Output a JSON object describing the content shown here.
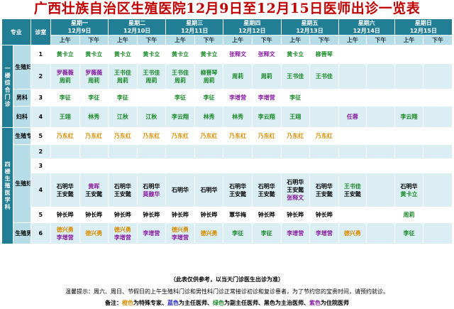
{
  "title": "广西壮族自治区生殖医院12月9日至12月15日医师出诊一览表",
  "header": {
    "specialty": "专业",
    "room": "诊室",
    "am": "上午",
    "pm": "下午",
    "days": [
      {
        "weekday": "星期一",
        "date": "12月9日"
      },
      {
        "weekday": "星期二",
        "date": "12月10日"
      },
      {
        "weekday": "星期三",
        "date": "12月11日"
      },
      {
        "weekday": "星期四",
        "date": "12月12日"
      },
      {
        "weekday": "星期五",
        "date": "12月13日"
      },
      {
        "weekday": "星期六",
        "date": "12月14日"
      },
      {
        "weekday": "星期日",
        "date": "12月15日"
      }
    ]
  },
  "groups": [
    {
      "label": "一楼综合门诊"
    },
    {
      "label": "四楼生殖医学科"
    }
  ],
  "specialties": [
    "生殖妇科",
    "男科",
    "妇科",
    "生殖专家",
    "生殖妇科",
    "生殖男科"
  ],
  "rows": [
    {
      "room": "1",
      "cells": [
        [
          "黄卡立"
        ],
        [
          "黄卡立"
        ],
        [
          "黄卡立"
        ],
        [
          "黄卡立"
        ],
        [
          "黄卡立"
        ],
        [
          "黄卡立"
        ],
        [
          "张释文"
        ],
        [
          "张释文"
        ],
        [
          "黄卡立"
        ],
        [
          "柳晋琴"
        ],
        [],
        [],
        [],
        []
      ]
    },
    {
      "room": "2",
      "cells": [
        [
          "罗薇薇",
          "周莉"
        ],
        [
          "罗薇薇",
          "周莉"
        ],
        [
          "王书佳",
          "周莉"
        ],
        [
          "王书佳",
          "周莉"
        ],
        [
          "王书佳",
          "周莉"
        ],
        [
          "柳晋琴",
          "周莉"
        ],
        [
          "周莉"
        ],
        [
          "周莉"
        ],
        [
          "王书佳"
        ],
        [
          "王书佳"
        ],
        [],
        [],
        [],
        []
      ]
    },
    {
      "room": "3",
      "cells": [
        [
          "李征"
        ],
        [
          "李征"
        ],
        [
          "李征"
        ],
        [],
        [
          "李征"
        ],
        [
          "李征"
        ],
        [
          "李增营"
        ],
        [
          "李增营"
        ],
        [
          "李征"
        ],
        [],
        [],
        [],
        [],
        []
      ]
    },
    {
      "room": "4",
      "cells": [
        [
          "王翊"
        ],
        [
          "林秀"
        ],
        [
          "江秋"
        ],
        [
          "江秋"
        ],
        [
          "李云翔"
        ],
        [
          "林秀"
        ],
        [
          "林秀"
        ],
        [
          "李云翔"
        ],
        [
          "王翊"
        ],
        [],
        [
          "任蓉"
        ],
        [],
        [
          "李云翔"
        ],
        []
      ]
    },
    {
      "room": "5",
      "cells": [
        [
          "乃东红"
        ],
        [
          "乃东红"
        ],
        [
          "乃东红"
        ],
        [
          "乃东红"
        ],
        [
          "乃东红"
        ],
        [
          "乃东红"
        ],
        [
          "乃东红"
        ],
        [
          "乃东红"
        ],
        [
          "乃东红"
        ],
        [
          "乃东红"
        ],
        [],
        [],
        [],
        []
      ]
    },
    {
      "room": "2",
      "cells": [
        [],
        [],
        [],
        [],
        [],
        [],
        [],
        [],
        [],
        [],
        [],
        [],
        [],
        []
      ]
    },
    {
      "room": "3",
      "cells": [
        [],
        [],
        [],
        [],
        [],
        [],
        [],
        [],
        [],
        [],
        [],
        [],
        [],
        []
      ]
    },
    {
      "room": "4",
      "cells": [
        [
          "石明华",
          "王安懿"
        ],
        [
          "黄晖",
          "王安懿"
        ],
        [
          "石明华",
          "王安懿"
        ],
        [
          "石明华",
          "莫馥华"
        ],
        [
          "石明华"
        ],
        [
          "石明华"
        ],
        [
          "石明华",
          "王安懿"
        ],
        [
          "石明华",
          "王安懿"
        ],
        [
          "石明华",
          "王安懿",
          "张释文"
        ],
        [
          "石明华",
          "王安懿"
        ],
        [
          "王书佳",
          "王安懿"
        ],
        [],
        [
          "石明华",
          "黄卡立"
        ],
        []
      ]
    },
    {
      "room": "5",
      "cells": [
        [
          "钟长晔"
        ],
        [
          "钟长晔"
        ],
        [
          "钟长晔"
        ],
        [
          "钟长晔"
        ],
        [
          "钟长晔"
        ],
        [
          "钟长晔"
        ],
        [
          "覃华梅"
        ],
        [
          "钟长晔"
        ],
        [
          "钟长晔"
        ],
        [
          "钟长晔"
        ],
        [],
        [],
        [
          "周莉"
        ],
        []
      ]
    },
    {
      "room": "6",
      "cells": [
        [
          "德兴勇",
          "李增营"
        ],
        [
          "德兴勇"
        ],
        [
          "德兴勇",
          "李增营"
        ],
        [
          "李增营"
        ],
        [
          "德兴勇",
          "李增营"
        ],
        [
          "德兴勇"
        ],
        [
          "李征"
        ],
        [
          "李征"
        ],
        [
          "李增营"
        ],
        [
          "李增营"
        ],
        [
          "德兴勇"
        ],
        [],
        [
          "李征"
        ],
        []
      ]
    }
  ],
  "color_map": {
    "黄卡立": "green",
    "张释文": "purple",
    "柳晋琴": "green",
    "罗薇薇": "purple",
    "周莉": "green",
    "王书佳": "green",
    "李征": "green",
    "李增营": "purple",
    "王翊": "green",
    "林秀": "green",
    "江秋": "green",
    "李云翔": "green",
    "任蓉": "purple",
    "乃东红": "orange",
    "石明华": "black",
    "王安懿": "black",
    "黄晖": "purple",
    "莫馥华": "purple",
    "钟长晔": "black",
    "覃华梅": "black",
    "德兴勇": "orange"
  },
  "colors": {
    "header_bg": "#217e95",
    "subheader_bg": "#b7dde8",
    "band_bg": "#daeef3",
    "orange": "#d98c00",
    "blue": "#2323c8",
    "green": "#1c8a2a",
    "black": "#000000",
    "purple": "#8a1fa3",
    "title": "#c00000"
  },
  "notes": {
    "ref": "（此表仅供参考，以当天门诊医生出诊为准）",
    "tip": "温馨提示：周六、周日、节假日的上午生殖科门诊和男性科门诊正常接诊初诊和复诊患者，为了节约您的宝贵时间，请预约就诊。",
    "legend_prefix": "备注：",
    "legend": [
      {
        "color": "orange",
        "label": "橙色",
        "meaning": "为特殊专家、"
      },
      {
        "color": "blue",
        "label": "蓝色",
        "meaning": "为主任医师、"
      },
      {
        "color": "green",
        "label": "绿色",
        "meaning": "为副主任医师、"
      },
      {
        "color": "black",
        "label": "黑色",
        "meaning": "为主治医师、"
      },
      {
        "color": "purple",
        "label": "紫色",
        "meaning": "为住院医师"
      }
    ]
  }
}
